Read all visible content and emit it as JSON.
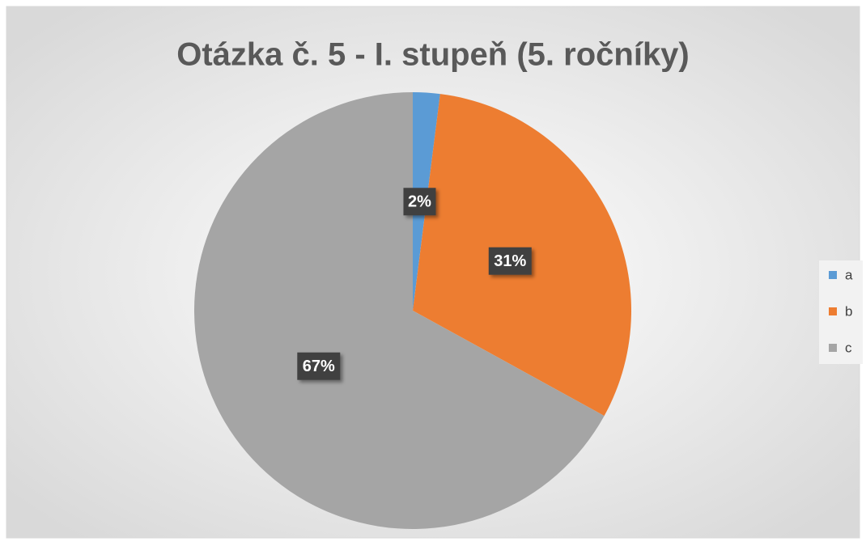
{
  "chart_data": {
    "type": "pie",
    "title": "Otázka č. 5 - I. stupeň (5. ročníky)",
    "categories": [
      "a",
      "b",
      "c"
    ],
    "values": [
      2,
      31,
      67
    ],
    "value_labels": [
      "2%",
      "31%",
      "67%"
    ],
    "colors": [
      "#5b9bd5",
      "#ed7d31",
      "#a5a5a5"
    ],
    "legend": "right"
  }
}
